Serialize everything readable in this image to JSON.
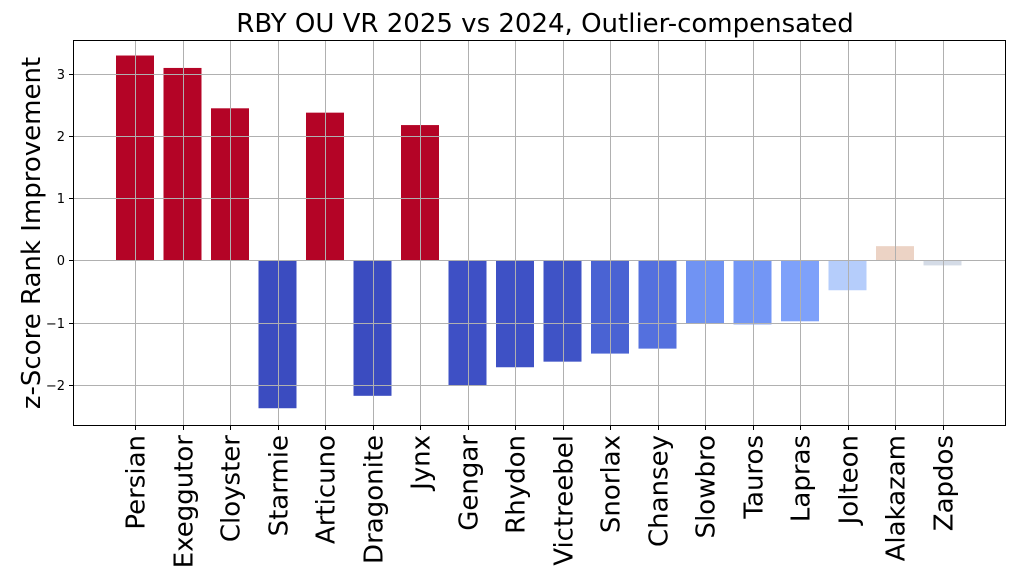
{
  "chart_data": {
    "type": "bar",
    "title": "RBY OU VR 2025 vs 2024, Outlier-compensated",
    "xlabel": "",
    "ylabel": "z-Score Rank Improvement",
    "ylim": [
      -2.65,
      3.55
    ],
    "yticks": [
      -2,
      -1,
      0,
      1,
      2,
      3
    ],
    "ytick_labels": [
      "−2",
      "−1",
      "0",
      "1",
      "2",
      "3"
    ],
    "grid": true,
    "categories": [
      "Persian",
      "Exeggutor",
      "Cloyster",
      "Starmie",
      "Articuno",
      "Dragonite",
      "Jynx",
      "Gengar",
      "Rhydon",
      "Victreebel",
      "Snorlax",
      "Chansey",
      "Slowbro",
      "Tauros",
      "Lapras",
      "Jolteon",
      "Alakazam",
      "Zapdos"
    ],
    "values": [
      3.3,
      3.1,
      2.45,
      -2.38,
      2.38,
      -2.18,
      2.18,
      -2.02,
      -1.72,
      -1.63,
      -1.5,
      -1.42,
      -1.02,
      -1.03,
      -0.98,
      -0.48,
      0.23,
      -0.08
    ],
    "colors": [
      "#b40426",
      "#b40426",
      "#b40426",
      "#3b4cc0",
      "#b40426",
      "#3b4cc0",
      "#b40426",
      "#3e50c5",
      "#3e51c5",
      "#3f53c6",
      "#4a63d3",
      "#5470de",
      "#7093f3",
      "#7396f5",
      "#7ea1fa",
      "#b5cdfb",
      "#ecd3c5",
      "#d4dbe6"
    ]
  }
}
